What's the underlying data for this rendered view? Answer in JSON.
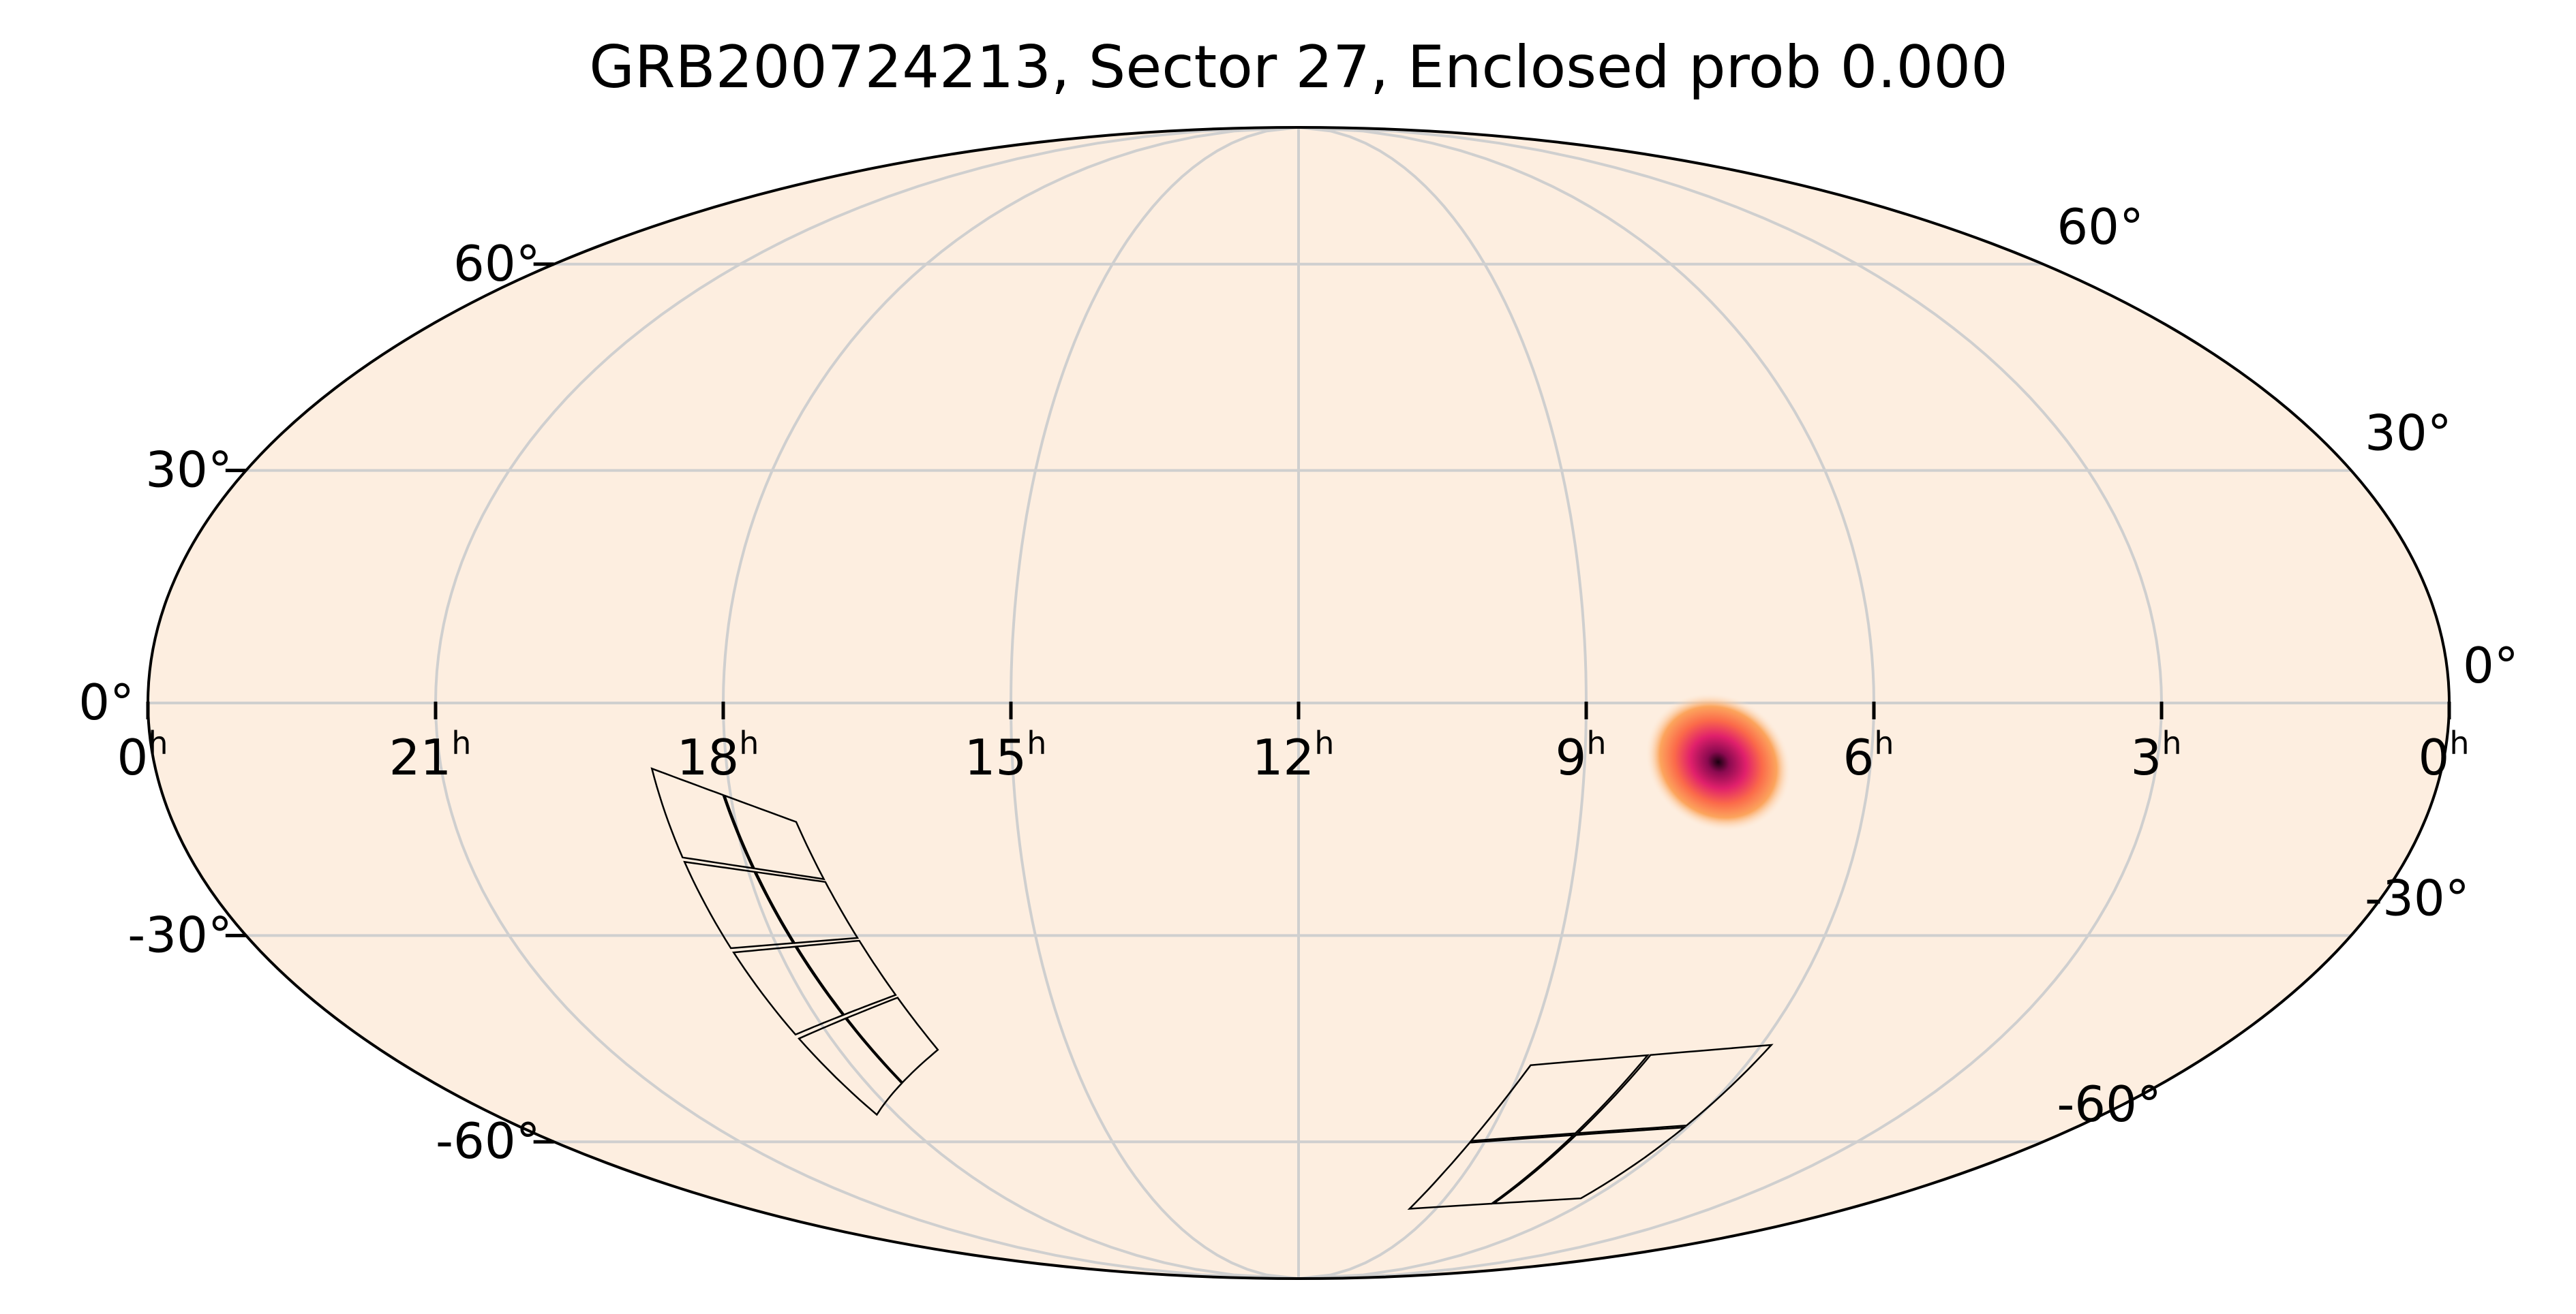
{
  "title": "GRB200724213, Sector 27, Enclosed prob 0.000",
  "map": {
    "projection": "Mollweide",
    "coordinate_frame": "RA / Dec (equatorial)",
    "background_color": "#fdeee0",
    "grid_color": "#cfcfcf",
    "colormap": [
      "#fdeee0",
      "#fca55d",
      "#fb6a4a",
      "#e0206b",
      "#8b0a50",
      "#1a0010"
    ]
  },
  "ra_labels": [
    {
      "key": "ra-0h-left",
      "ra_hours": 24,
      "text": "0",
      "unit": "h"
    },
    {
      "key": "ra-21h",
      "ra_hours": 21,
      "text": "21",
      "unit": "h"
    },
    {
      "key": "ra-18h",
      "ra_hours": 18,
      "text": "18",
      "unit": "h"
    },
    {
      "key": "ra-15h",
      "ra_hours": 15,
      "text": "15",
      "unit": "h"
    },
    {
      "key": "ra-12h",
      "ra_hours": 12,
      "text": "12",
      "unit": "h"
    },
    {
      "key": "ra-9h",
      "ra_hours": 9,
      "text": "9",
      "unit": "h"
    },
    {
      "key": "ra-6h",
      "ra_hours": 6,
      "text": "6",
      "unit": "h"
    },
    {
      "key": "ra-3h",
      "ra_hours": 3,
      "text": "3",
      "unit": "h"
    },
    {
      "key": "ra-0h-right",
      "ra_hours": 0,
      "text": "0",
      "unit": "h"
    }
  ],
  "dec_labels_left": [
    {
      "dec": 60,
      "text": "60°"
    },
    {
      "dec": 30,
      "text": "30°"
    },
    {
      "dec": 0,
      "text": "0°"
    },
    {
      "dec": -30,
      "text": "-30°"
    },
    {
      "dec": -60,
      "text": "-60°"
    }
  ],
  "dec_labels_right": [
    {
      "dec": 60,
      "text": "60°"
    },
    {
      "dec": 30,
      "text": "30°"
    },
    {
      "dec": 0,
      "text": "0°"
    },
    {
      "dec": -30,
      "text": "-30°"
    },
    {
      "dec": -60,
      "text": "-60°"
    }
  ],
  "grb_localization": {
    "peak_ra_hours": 7.6,
    "peak_dec_deg": -7.5,
    "sigma_ra_deg": 6,
    "sigma_dec_deg": 9,
    "tilt_deg": 35
  },
  "tess_footprints": [
    {
      "name": "camera-footprint-a",
      "corners": [
        [
          18.8,
          -8
        ],
        [
          17.35,
          -15
        ],
        [
          16.7,
          -46
        ],
        [
          18.3,
          -56
        ]
      ],
      "rows": 4,
      "cols": 2
    },
    {
      "name": "camera-footprint-b",
      "corners": [
        [
          8.9,
          -48
        ],
        [
          7.55,
          -47
        ],
        [
          5.85,
          -45
        ],
        [
          6.2,
          -70
        ],
        [
          9.6,
          -72
        ]
      ],
      "rows": 2,
      "cols": 2
    }
  ]
}
